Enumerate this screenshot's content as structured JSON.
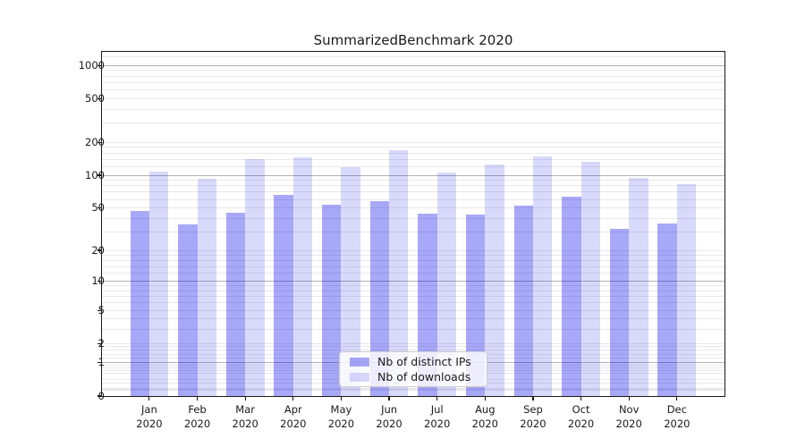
{
  "chart_data": {
    "type": "bar",
    "title": "SummarizedBenchmark 2020",
    "categories": [
      "Jan 2020",
      "Feb 2020",
      "Mar 2020",
      "Apr 2020",
      "May 2020",
      "Jun 2020",
      "Jul 2020",
      "Aug 2020",
      "Sep 2020",
      "Oct 2020",
      "Nov 2020",
      "Dec 2020"
    ],
    "series": [
      {
        "name": "Nb of distinct IPs",
        "values": [
          47,
          35,
          45,
          66,
          54,
          58,
          44,
          43,
          53,
          64,
          32,
          36
        ]
      },
      {
        "name": "Nb of downloads",
        "values": [
          108,
          93,
          140,
          146,
          119,
          170,
          105,
          125,
          150,
          132,
          94,
          83
        ]
      }
    ],
    "yscale": "symlog (log10(1+y))",
    "y_tick_values": [
      1000,
      500,
      200,
      100,
      50,
      20,
      10,
      5,
      2,
      1,
      0
    ],
    "y_tick_labels": [
      "1000",
      "500",
      "200",
      "100",
      "50",
      "20",
      "10",
      "5",
      "2",
      "1",
      "0"
    ],
    "ylim": [
      0,
      1331
    ],
    "grid": true,
    "legend_position": "lower center"
  },
  "colors": {
    "bar_distinct_ips": "rgba(0,0,235,0.34)",
    "bar_downloads": "rgba(0,0,235,0.15)",
    "grid_major": "#b3b3b3",
    "grid_minor": "#e9e9e9",
    "axis": "#1a1a1a"
  }
}
